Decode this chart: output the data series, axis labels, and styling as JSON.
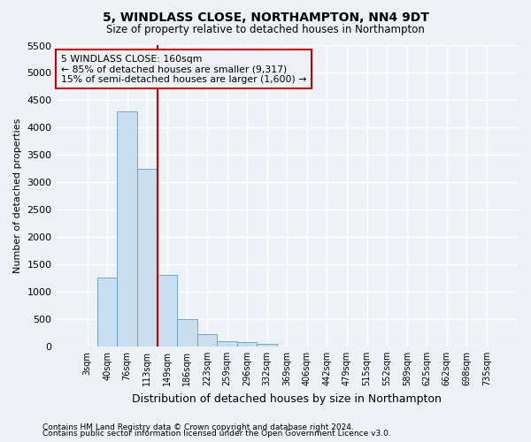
{
  "title": "5, WINDLASS CLOSE, NORTHAMPTON, NN4 9DT",
  "subtitle": "Size of property relative to detached houses in Northampton",
  "xlabel": "Distribution of detached houses by size in Northampton",
  "ylabel": "Number of detached properties",
  "footnote1": "Contains HM Land Registry data © Crown copyright and database right 2024.",
  "footnote2": "Contains public sector information licensed under the Open Government Licence v3.0.",
  "categories": [
    "3sqm",
    "40sqm",
    "76sqm",
    "113sqm",
    "149sqm",
    "186sqm",
    "223sqm",
    "259sqm",
    "296sqm",
    "332sqm",
    "369sqm",
    "406sqm",
    "442sqm",
    "479sqm",
    "515sqm",
    "552sqm",
    "589sqm",
    "625sqm",
    "662sqm",
    "698sqm",
    "735sqm"
  ],
  "values": [
    0,
    1250,
    4300,
    3250,
    1300,
    500,
    230,
    100,
    70,
    50,
    0,
    0,
    0,
    0,
    0,
    0,
    0,
    0,
    0,
    0,
    0
  ],
  "bar_color": "#c9dff0",
  "bar_edge_color": "#5a9ec9",
  "ylim": [
    0,
    5500
  ],
  "yticks": [
    0,
    500,
    1000,
    1500,
    2000,
    2500,
    3000,
    3500,
    4000,
    4500,
    5000,
    5500
  ],
  "vline_x_idx": 3.5,
  "vline_color": "#cc0000",
  "annotation_box_text1": "5 WINDLASS CLOSE: 160sqm",
  "annotation_box_text2": "← 85% of detached houses are smaller (9,317)",
  "annotation_box_text3": "15% of semi-detached houses are larger (1,600) →",
  "bg_color": "#eef2f7",
  "grid_color": "#dde4ef",
  "plot_bg_color": "#eef2f7"
}
